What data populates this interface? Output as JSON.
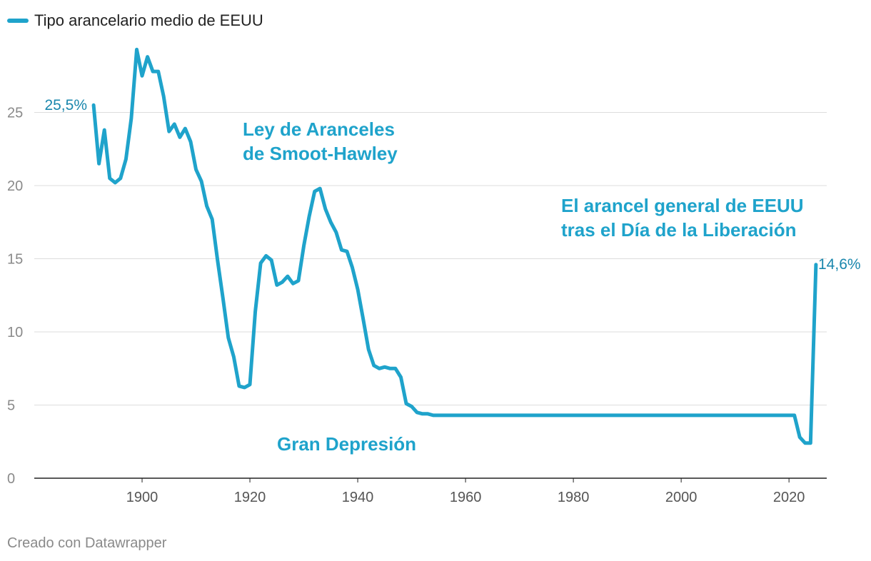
{
  "legend": {
    "label": "Tipo arancelario medio de EEUU"
  },
  "footer": {
    "credit": "Creado con Datawrapper"
  },
  "colors": {
    "line": "#1fa3cb",
    "annotation": "#1fa3cb",
    "label": "#1a87ad",
    "grid": "#dddddd",
    "axis": "#222222"
  },
  "chart_data": {
    "type": "line",
    "title": "",
    "xlabel": "",
    "ylabel": "",
    "xlim": [
      1880,
      2027
    ],
    "ylim": [
      0,
      30
    ],
    "y_ticks": [
      "0",
      "5",
      "10",
      "15",
      "20",
      "25"
    ],
    "x_ticks": [
      "1900",
      "1920",
      "1940",
      "1960",
      "1980",
      "2000",
      "2020"
    ],
    "series": [
      {
        "name": "Tipo arancelario medio de EEUU",
        "x": [
          1891,
          1892,
          1893,
          1894,
          1895,
          1896,
          1897,
          1898,
          1899,
          1900,
          1901,
          1902,
          1903,
          1904,
          1905,
          1906,
          1907,
          1908,
          1909,
          1910,
          1911,
          1912,
          1913,
          1914,
          1915,
          1916,
          1917,
          1918,
          1919,
          1920,
          1921,
          1922,
          1923,
          1924,
          1925,
          1926,
          1927,
          1928,
          1929,
          1930,
          1931,
          1932,
          1933,
          1934,
          1935,
          1936,
          1937,
          1938,
          1939,
          1940,
          1941,
          1942,
          1943,
          1944,
          1945,
          1946,
          1947,
          1948,
          1949,
          1950,
          1951,
          1952,
          1953,
          1954,
          1960,
          1970,
          1980,
          1990,
          2000,
          2010,
          2015,
          2021,
          2022,
          2023,
          2024,
          2025
        ],
        "y": [
          25.5,
          21.5,
          23.8,
          20.5,
          20.2,
          20.5,
          21.8,
          24.6,
          29.3,
          27.5,
          28.8,
          27.8,
          27.8,
          26.1,
          23.7,
          24.2,
          23.3,
          23.9,
          23.0,
          21.1,
          20.3,
          18.6,
          17.7,
          14.9,
          12.3,
          9.6,
          8.3,
          6.3,
          6.2,
          6.4,
          11.4,
          14.7,
          15.2,
          14.9,
          13.2,
          13.4,
          13.8,
          13.3,
          13.5,
          15.9,
          17.9,
          19.6,
          19.8,
          18.4,
          17.5,
          16.8,
          15.6,
          15.5,
          14.4,
          12.9,
          10.9,
          8.8,
          7.7,
          7.5,
          7.6,
          7.5,
          7.5,
          6.9,
          5.1,
          4.9,
          4.5,
          4.4,
          4.4,
          4.3,
          4.3,
          4.3,
          4.3,
          4.3,
          4.3,
          4.3,
          4.3,
          4.3,
          2.8,
          2.4,
          2.4,
          14.6
        ]
      }
    ],
    "annotations": [
      {
        "lines": [
          "Ley de Aranceles",
          "de Smoot-Hawley"
        ]
      },
      {
        "lines": [
          "El arancel general de EEUU",
          "tras el Día de la Liberación"
        ]
      },
      {
        "lines": [
          "Gran Depresión"
        ]
      }
    ],
    "end_labels": {
      "start": "25,5%",
      "end": "14,6%"
    },
    "grid": true
  }
}
